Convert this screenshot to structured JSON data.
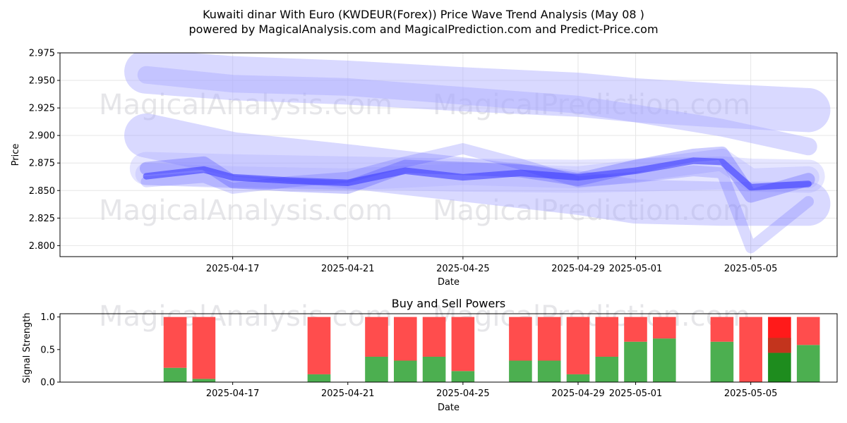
{
  "title_line1": "Kuwaiti dinar With Euro (KWDEUR(Forex)) Price Wave Trend Analysis (May 08 )",
  "title_line2": "powered by MagicalAnalysis.com and MagicalPrediction.com and Predict-Price.com",
  "watermarks": [
    "MagicalAnalysis.com",
    "MagicalPrediction.com"
  ],
  "chart_data": [
    {
      "type": "line",
      "xlabel": "Date",
      "ylabel": "Price",
      "ylim": [
        2.79,
        2.975
      ],
      "y_ticks": [
        "2.800",
        "2.825",
        "2.850",
        "2.875",
        "2.900",
        "2.925",
        "2.950",
        "2.975"
      ],
      "x_ticks": [
        "2025-04-17",
        "2025-04-21",
        "2025-04-25",
        "2025-04-29",
        "2025-05-01",
        "2025-05-05"
      ],
      "grid": true,
      "colors": {
        "wave": "#3333ff",
        "wave_light": "#aaaaff"
      },
      "bands": [
        {
          "x": [
            "2025-04-14",
            "2025-04-17",
            "2025-04-21",
            "2025-04-25",
            "2025-04-29",
            "2025-05-01",
            "2025-05-04",
            "2025-05-07"
          ],
          "values": [
            2.958,
            2.952,
            2.948,
            2.942,
            2.937,
            2.932,
            2.927,
            2.923
          ],
          "width": 0.04,
          "opacity": 0.45
        },
        {
          "x": [
            "2025-04-14",
            "2025-04-17",
            "2025-04-21",
            "2025-04-25",
            "2025-04-29",
            "2025-05-01",
            "2025-05-04",
            "2025-05-07"
          ],
          "values": [
            2.955,
            2.947,
            2.944,
            2.936,
            2.928,
            2.92,
            2.907,
            2.89
          ],
          "width": 0.016,
          "opacity": 0.45
        },
        {
          "x": [
            "2025-04-14",
            "2025-04-17",
            "2025-04-21",
            "2025-04-25",
            "2025-04-29",
            "2025-05-01",
            "2025-05-04",
            "2025-05-05",
            "2025-05-07"
          ],
          "values": [
            2.9,
            2.883,
            2.872,
            2.86,
            2.848,
            2.84,
            2.838,
            2.838,
            2.838
          ],
          "width": 0.04,
          "opacity": 0.45
        },
        {
          "x": [
            "2025-04-14",
            "2025-04-17",
            "2025-04-21",
            "2025-04-25",
            "2025-04-29",
            "2025-05-01",
            "2025-05-04",
            "2025-05-05",
            "2025-05-07"
          ],
          "values": [
            2.87,
            2.868,
            2.866,
            2.864,
            2.863,
            2.864,
            2.866,
            2.864,
            2.863
          ],
          "width": 0.03,
          "opacity": 0.3
        },
        {
          "x": [
            "2025-04-14",
            "2025-04-17",
            "2025-04-21",
            "2025-04-25",
            "2025-04-29",
            "2025-05-01",
            "2025-05-04",
            "2025-05-05",
            "2025-05-07"
          ],
          "values": [
            2.865,
            2.862,
            2.86,
            2.865,
            2.862,
            2.868,
            2.878,
            2.86,
            2.862
          ],
          "width": 0.02,
          "opacity": 0.3
        }
      ],
      "series": [
        {
          "x": [
            "2025-04-14",
            "2025-04-16",
            "2025-04-17",
            "2025-04-19",
            "2025-04-21",
            "2025-04-23",
            "2025-04-25",
            "2025-04-27",
            "2025-04-29",
            "2025-05-01",
            "2025-05-03",
            "2025-05-04",
            "2025-05-05",
            "2025-05-07"
          ],
          "values": [
            2.863,
            2.869,
            2.862,
            2.859,
            2.857,
            2.868,
            2.862,
            2.866,
            2.862,
            2.868,
            2.877,
            2.876,
            2.853,
            2.856
          ],
          "width": 0.006,
          "opacity": 0.55
        },
        {
          "x": [
            "2025-04-14",
            "2025-04-16",
            "2025-04-17",
            "2025-04-19",
            "2025-04-21",
            "2025-04-23",
            "2025-04-25",
            "2025-04-27",
            "2025-04-29",
            "2025-05-01",
            "2025-05-03",
            "2025-05-04",
            "2025-05-05",
            "2025-05-07"
          ],
          "values": [
            2.87,
            2.875,
            2.858,
            2.855,
            2.853,
            2.872,
            2.87,
            2.868,
            2.86,
            2.872,
            2.882,
            2.884,
            2.845,
            2.86
          ],
          "width": 0.012,
          "opacity": 0.25
        },
        {
          "x": [
            "2025-04-14",
            "2025-04-16",
            "2025-04-17",
            "2025-04-19",
            "2025-04-21",
            "2025-04-23",
            "2025-04-25",
            "2025-04-27",
            "2025-04-29",
            "2025-05-01",
            "2025-05-03",
            "2025-05-04",
            "2025-05-05",
            "2025-05-07"
          ],
          "values": [
            2.858,
            2.862,
            2.852,
            2.858,
            2.862,
            2.876,
            2.888,
            2.874,
            2.858,
            2.862,
            2.868,
            2.866,
            2.798,
            2.84
          ],
          "width": 0.01,
          "opacity": 0.18
        }
      ]
    },
    {
      "type": "bar",
      "title": "Buy and Sell Powers",
      "xlabel": "Date",
      "ylabel": "Signal Strength",
      "ylim": [
        0,
        1.05
      ],
      "y_ticks": [
        "0.0",
        "0.5",
        "1.0"
      ],
      "x_ticks": [
        "2025-04-17",
        "2025-04-21",
        "2025-04-25",
        "2025-04-29",
        "2025-05-01",
        "2025-05-05"
      ],
      "colors": {
        "buy": "#4caf50",
        "sell": "#ff4d4d",
        "buy_strong": "#1e8c1e",
        "sell_strong": "#ff1a1a"
      },
      "categories": [
        "2025-04-15",
        "2025-04-16",
        "2025-04-20",
        "2025-04-22",
        "2025-04-23",
        "2025-04-24",
        "2025-04-25",
        "2025-04-27",
        "2025-04-28",
        "2025-04-29",
        "2025-04-30",
        "2025-05-01",
        "2025-05-02",
        "2025-05-04",
        "2025-05-05",
        "2025-05-06",
        "2025-05-07"
      ],
      "series": [
        {
          "name": "Buy",
          "values": [
            0.22,
            0.05,
            0.12,
            0.39,
            0.33,
            0.39,
            0.17,
            0.33,
            0.33,
            0.12,
            0.39,
            0.62,
            0.67,
            0.62,
            0.0,
            0.45,
            0.57
          ]
        },
        {
          "name": "Sell",
          "values": [
            0.78,
            0.95,
            0.88,
            0.61,
            0.67,
            0.61,
            0.83,
            0.67,
            0.67,
            0.88,
            0.61,
            0.38,
            0.33,
            0.38,
            1.0,
            0.55,
            0.43
          ]
        }
      ]
    }
  ]
}
